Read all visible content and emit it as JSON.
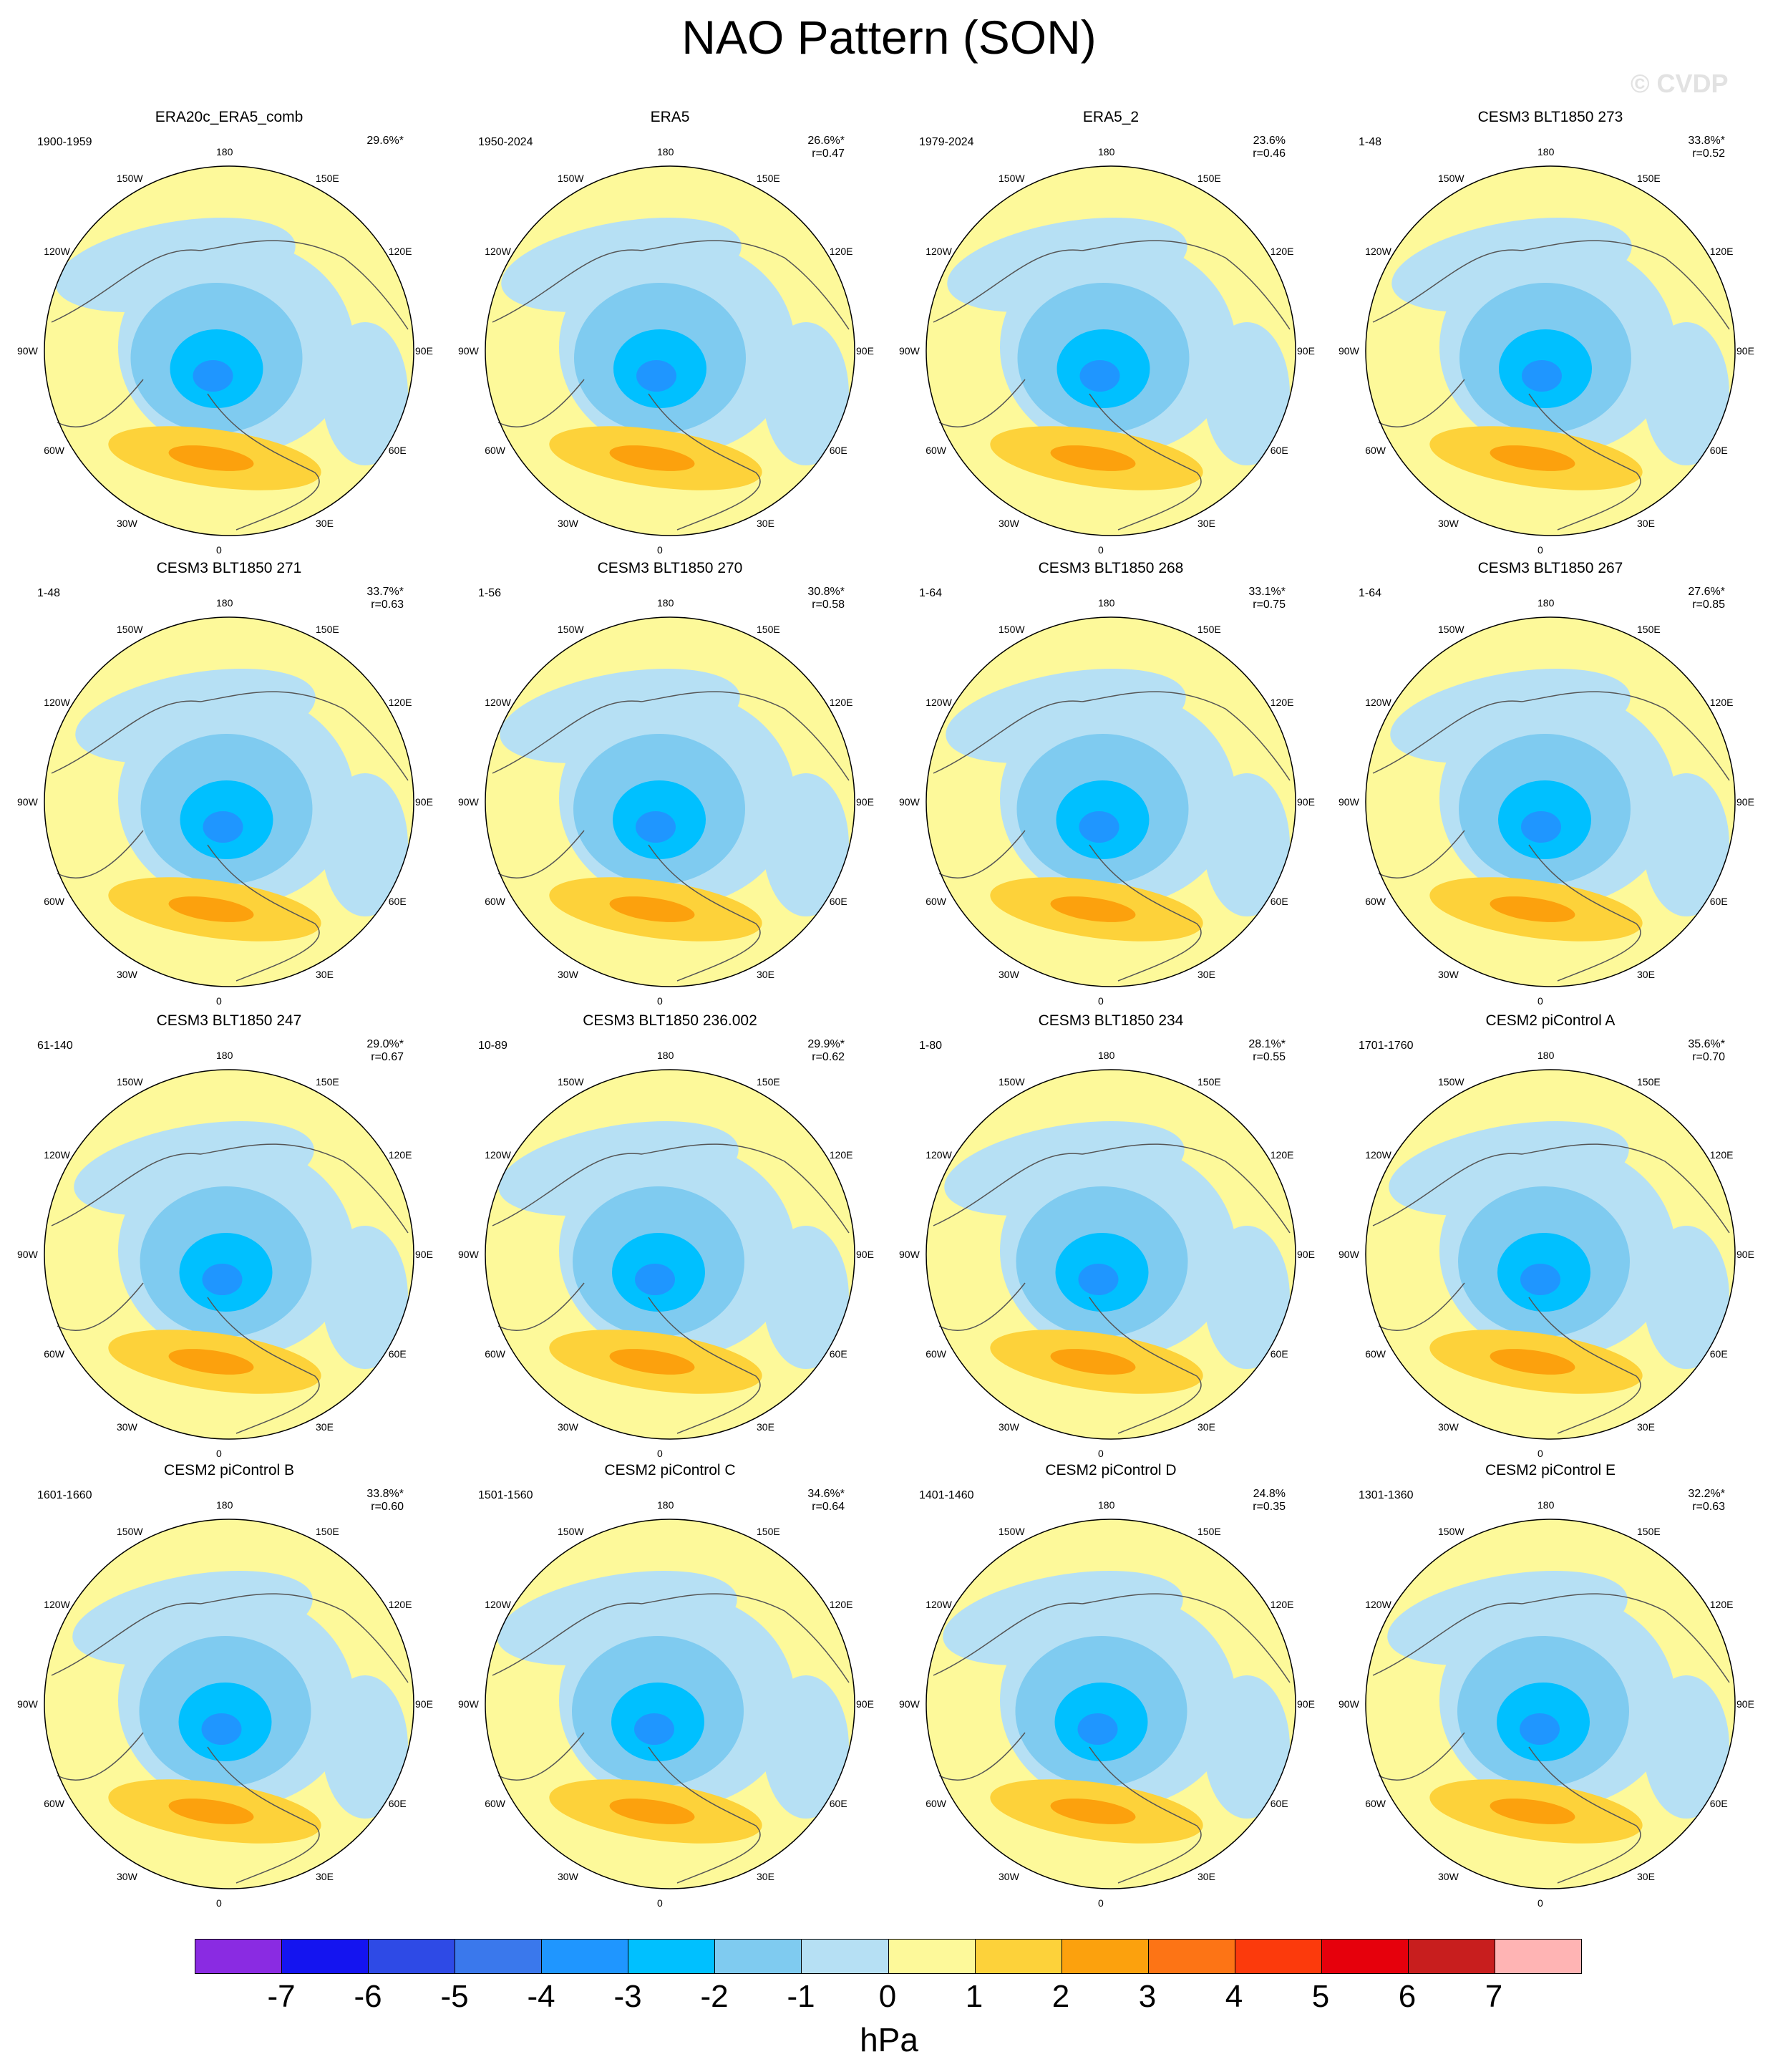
{
  "title": "NAO Pattern (SON)",
  "watermark": "© CVDP",
  "chart_data": {
    "type": "heatmap",
    "projection": "north-polar-stereographic",
    "variable_unit": "hPa",
    "lon_labels": [
      "180",
      "150E",
      "120E",
      "90E",
      "60E",
      "30E",
      "0",
      "30W",
      "60W",
      "90W",
      "120W",
      "150W"
    ],
    "panels": [
      {
        "title": "ERA20c_ERA5_comb",
        "years": "1900-1959",
        "pct": "29.6%*",
        "r": ""
      },
      {
        "title": "ERA5",
        "years": "1950-2024",
        "pct": "26.6%*",
        "r": "r=0.47"
      },
      {
        "title": "ERA5_2",
        "years": "1979-2024",
        "pct": "23.6%",
        "r": "r=0.46"
      },
      {
        "title": "CESM3 BLT1850 273",
        "years": "1-48",
        "pct": "33.8%*",
        "r": "r=0.52"
      },
      {
        "title": "CESM3 BLT1850 271",
        "years": "1-48",
        "pct": "33.7%*",
        "r": "r=0.63"
      },
      {
        "title": "CESM3 BLT1850 270",
        "years": "1-56",
        "pct": "30.8%*",
        "r": "r=0.58"
      },
      {
        "title": "CESM3 BLT1850 268",
        "years": "1-64",
        "pct": "33.1%*",
        "r": "r=0.75"
      },
      {
        "title": "CESM3 BLT1850 267",
        "years": "1-64",
        "pct": "27.6%*",
        "r": "r=0.85"
      },
      {
        "title": "CESM3 BLT1850 247",
        "years": "61-140",
        "pct": "29.0%*",
        "r": "r=0.67"
      },
      {
        "title": "CESM3 BLT1850 236.002",
        "years": "10-89",
        "pct": "29.9%*",
        "r": "r=0.62"
      },
      {
        "title": "CESM3 BLT1850 234",
        "years": "1-80",
        "pct": "28.1%*",
        "r": "r=0.55"
      },
      {
        "title": "CESM2 piControl A",
        "years": "1701-1760",
        "pct": "35.6%*",
        "r": "r=0.70"
      },
      {
        "title": "CESM2 piControl B",
        "years": "1601-1660",
        "pct": "33.8%*",
        "r": "r=0.60"
      },
      {
        "title": "CESM2 piControl C",
        "years": "1501-1560",
        "pct": "34.6%*",
        "r": "r=0.64"
      },
      {
        "title": "CESM2 piControl D",
        "years": "1401-1460",
        "pct": "24.8%",
        "r": "r=0.35"
      },
      {
        "title": "CESM2 piControl E",
        "years": "1301-1360",
        "pct": "32.2%*",
        "r": "r=0.63"
      }
    ],
    "colorbar": {
      "ticks": [
        "-7",
        "-6",
        "-5",
        "-4",
        "-3",
        "-2",
        "-1",
        "0",
        "1",
        "2",
        "3",
        "4",
        "5",
        "6",
        "7"
      ],
      "colors": [
        "#8a2be2",
        "#1414f0",
        "#2e4ae6",
        "#3a78ec",
        "#1f96ff",
        "#00c0ff",
        "#7fcbf0",
        "#b6e0f4",
        "#fdf99a",
        "#fdd23a",
        "#fca10d",
        "#fd7415",
        "#fc3a0c",
        "#e6000c",
        "#c81e1e",
        "#ffb4b4"
      ],
      "unit": "hPa"
    }
  }
}
